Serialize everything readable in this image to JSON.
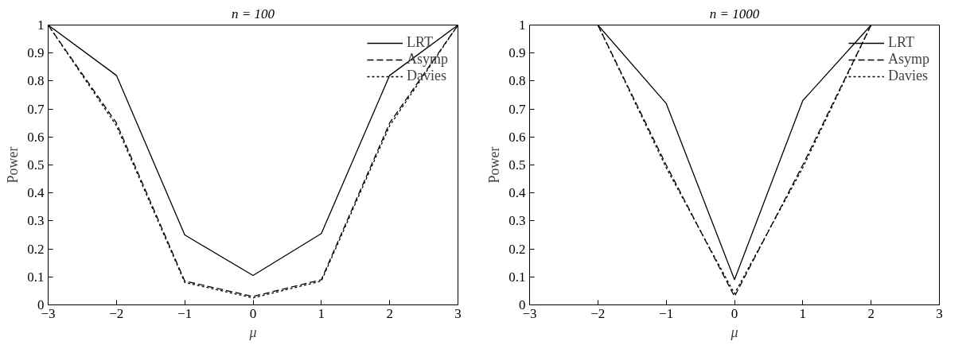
{
  "chart_data": [
    {
      "type": "line",
      "title": "n = 100",
      "xlabel": "μ",
      "ylabel": "Power",
      "x": [
        -3,
        -2,
        -1,
        0,
        1,
        2,
        3
      ],
      "xlim": [
        -3,
        3
      ],
      "ylim": [
        0,
        1
      ],
      "xticks": [
        -3,
        -2,
        -1,
        0,
        1,
        2,
        3
      ],
      "yticks": [
        0,
        0.1,
        0.2,
        0.3,
        0.4,
        0.5,
        0.6,
        0.7,
        0.8,
        0.9,
        1
      ],
      "legend": "top right",
      "grid": false,
      "series": [
        {
          "name": "LRT",
          "color": "#000000",
          "line_style": "solid",
          "values": [
            1,
            0.82,
            0.25,
            0.105,
            0.255,
            0.82,
            1
          ]
        },
        {
          "name": "Asymp",
          "color": "#000000",
          "line_style": "dashed",
          "values": [
            1,
            0.65,
            0.085,
            0.03,
            0.09,
            0.65,
            1
          ]
        },
        {
          "name": "Davies",
          "color": "#000000",
          "line_style": "dotted",
          "values": [
            1,
            0.64,
            0.08,
            0.025,
            0.085,
            0.64,
            1
          ]
        }
      ]
    },
    {
      "type": "line",
      "title": "n = 1000",
      "xlabel": "μ",
      "ylabel": "Power",
      "x": [
        -2,
        -1,
        0,
        1,
        2
      ],
      "xlim": [
        -3,
        3
      ],
      "ylim": [
        0,
        1
      ],
      "xticks": [
        -3,
        -2,
        -1,
        0,
        1,
        2,
        3
      ],
      "yticks": [
        0,
        0.1,
        0.2,
        0.3,
        0.4,
        0.5,
        0.6,
        0.7,
        0.8,
        0.9,
        1
      ],
      "legend": "top right",
      "grid": false,
      "series": [
        {
          "name": "LRT",
          "color": "#000000",
          "line_style": "solid",
          "values": [
            1,
            0.72,
            0.09,
            0.73,
            1
          ]
        },
        {
          "name": "Asymp",
          "color": "#000000",
          "line_style": "dashed",
          "values": [
            1,
            0.5,
            0.03,
            0.5,
            1
          ]
        },
        {
          "name": "Davies",
          "color": "#000000",
          "line_style": "dotted",
          "values": [
            1,
            0.49,
            0.04,
            0.49,
            1
          ]
        }
      ]
    }
  ]
}
